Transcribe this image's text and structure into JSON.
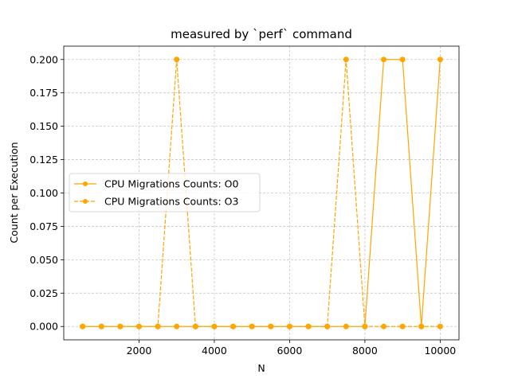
{
  "chart_data": {
    "type": "line",
    "title": "measured by `perf` command",
    "xlabel": "N",
    "ylabel": "Count per Execution",
    "xlim": [
      0,
      10500
    ],
    "ylim": [
      -0.01,
      0.21
    ],
    "x_ticks": [
      2000,
      4000,
      6000,
      8000,
      10000
    ],
    "y_ticks": [
      0.0,
      0.025,
      0.05,
      0.075,
      0.1,
      0.125,
      0.15,
      0.175,
      0.2
    ],
    "y_tick_labels": [
      "0.000",
      "0.025",
      "0.050",
      "0.075",
      "0.100",
      "0.125",
      "0.150",
      "0.175",
      "0.200"
    ],
    "grid": true,
    "legend_position": "center-left",
    "x": [
      500,
      1000,
      1500,
      2000,
      2500,
      3000,
      3500,
      4000,
      4500,
      5000,
      5500,
      6000,
      6500,
      7000,
      7500,
      8000,
      8500,
      9000,
      9500,
      10000
    ],
    "series": [
      {
        "name": "CPU Migrations Counts: O0",
        "color": "#ffa500",
        "linestyle": "solid",
        "marker": "circle",
        "values": [
          0,
          0,
          0,
          0,
          0,
          0,
          0,
          0,
          0,
          0,
          0,
          0,
          0,
          0,
          0,
          0,
          0.2,
          0.2,
          0,
          0.2
        ]
      },
      {
        "name": "CPU Migrations Counts: O3",
        "color": "#ffa500",
        "linestyle": "dashed",
        "marker": "circle",
        "values": [
          0,
          0,
          0,
          0,
          0,
          0.2,
          0,
          0,
          0,
          0,
          0,
          0,
          0,
          0,
          0.2,
          0,
          0,
          0,
          0,
          0
        ]
      }
    ]
  }
}
